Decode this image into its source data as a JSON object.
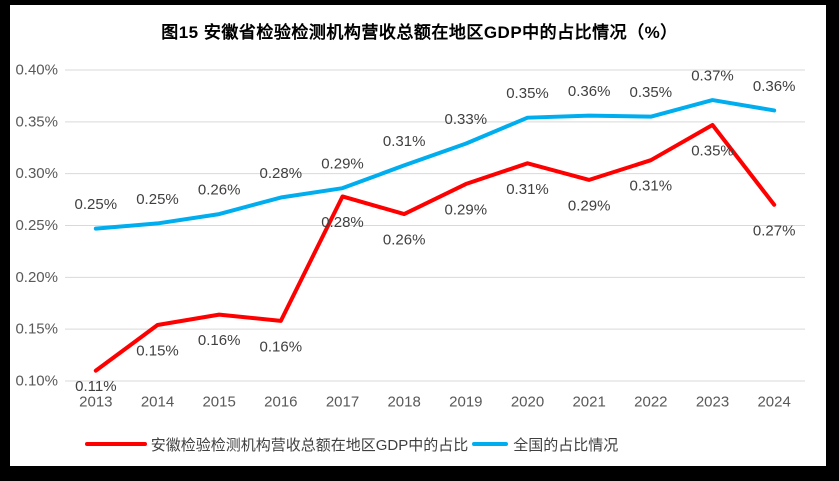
{
  "chart_data": {
    "type": "line",
    "title": "图15 安徽省检验检测机构营收总额在地区GDP中的占比情况（%）",
    "categories": [
      "2013",
      "2014",
      "2015",
      "2016",
      "2017",
      "2018",
      "2019",
      "2020",
      "2021",
      "2022",
      "2023",
      "2024"
    ],
    "series": [
      {
        "name": "安徽检验检测机构营收总额在地区GDP中的占比",
        "color": "#FF0000",
        "values": [
          0.11,
          0.15,
          0.16,
          0.16,
          0.28,
          0.26,
          0.29,
          0.31,
          0.29,
          0.31,
          0.35,
          0.27
        ],
        "labels": [
          "0.11%",
          "0.15%",
          "0.16%",
          "0.16%",
          "0.28%",
          "0.26%",
          "0.29%",
          "0.31%",
          "0.29%",
          "0.31%",
          "0.35%",
          "0.27%"
        ],
        "plot_values": [
          0.11,
          0.154,
          0.164,
          0.158,
          0.278,
          0.261,
          0.29,
          0.31,
          0.294,
          0.313,
          0.347,
          0.27
        ]
      },
      {
        "name": "全国的占比情况",
        "color": "#00AEEF",
        "values": [
          0.25,
          0.25,
          0.26,
          0.28,
          0.29,
          0.31,
          0.33,
          0.35,
          0.36,
          0.35,
          0.37,
          0.36
        ],
        "labels": [
          "0.25%",
          "0.25%",
          "0.26%",
          "0.28%",
          "0.29%",
          "0.31%",
          "0.33%",
          "0.35%",
          "0.36%",
          "0.35%",
          "0.37%",
          "0.36%"
        ],
        "plot_values": [
          0.247,
          0.252,
          0.261,
          0.277,
          0.286,
          0.308,
          0.329,
          0.354,
          0.356,
          0.355,
          0.371,
          0.361
        ]
      }
    ],
    "ylim": [
      0.1,
      0.4
    ],
    "yticks": [
      {
        "value": 0.1,
        "label": "0.10%"
      },
      {
        "value": 0.15,
        "label": "0.15%"
      },
      {
        "value": 0.2,
        "label": "0.20%"
      },
      {
        "value": 0.25,
        "label": "0.25%"
      },
      {
        "value": 0.3,
        "label": "0.30%"
      },
      {
        "value": 0.35,
        "label": "0.35%"
      },
      {
        "value": 0.4,
        "label": "0.40%"
      }
    ],
    "grid": true,
    "legend_position": "bottom"
  },
  "colors": {
    "grid": "#D9D9D9",
    "axis_text": "#595959",
    "data_label_text": "#404040",
    "frame": "#000000"
  }
}
